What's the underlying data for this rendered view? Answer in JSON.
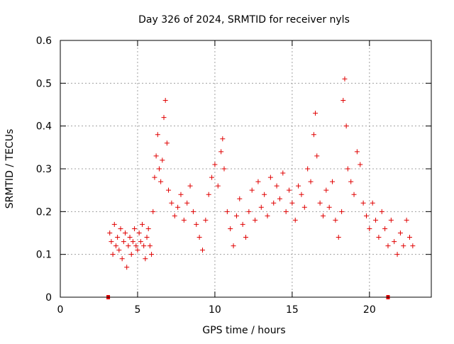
{
  "chart_data": {
    "type": "scatter",
    "title": "Day 326 of 2024, SRMTID for receiver nyls",
    "xlabel": "GPS time / hours",
    "ylabel": "SRMTID / TECUs",
    "xlim": [
      0,
      24
    ],
    "ylim": [
      0,
      0.6
    ],
    "x_ticks": [
      0,
      5,
      10,
      15,
      20
    ],
    "x_tick_labels": [
      "0",
      "5",
      "10",
      "15",
      "20"
    ],
    "y_ticks": [
      0,
      0.1,
      0.2,
      0.3,
      0.4,
      0.5,
      0.6
    ],
    "y_tick_labels": [
      "0",
      "0.1",
      "0.2",
      "0.3",
      "0.4",
      "0.5",
      "0.6"
    ],
    "grid": true,
    "marker": "+",
    "series_color": "#e00000",
    "axis_markers": [
      {
        "x": 3.1,
        "y": 0
      },
      {
        "x": 21.2,
        "y": 0
      }
    ],
    "series": [
      {
        "name": "SRMTID",
        "points": [
          [
            3.2,
            0.15
          ],
          [
            3.3,
            0.13
          ],
          [
            3.4,
            0.1
          ],
          [
            3.5,
            0.17
          ],
          [
            3.6,
            0.12
          ],
          [
            3.7,
            0.14
          ],
          [
            3.8,
            0.11
          ],
          [
            3.9,
            0.16
          ],
          [
            4.0,
            0.09
          ],
          [
            4.1,
            0.13
          ],
          [
            4.2,
            0.15
          ],
          [
            4.3,
            0.07
          ],
          [
            4.4,
            0.12
          ],
          [
            4.5,
            0.14
          ],
          [
            4.6,
            0.1
          ],
          [
            4.7,
            0.13
          ],
          [
            4.8,
            0.16
          ],
          [
            4.9,
            0.12
          ],
          [
            5.0,
            0.11
          ],
          [
            5.1,
            0.15
          ],
          [
            5.2,
            0.13
          ],
          [
            5.3,
            0.17
          ],
          [
            5.4,
            0.12
          ],
          [
            5.5,
            0.09
          ],
          [
            5.6,
            0.14
          ],
          [
            5.7,
            0.16
          ],
          [
            5.8,
            0.12
          ],
          [
            5.9,
            0.1
          ],
          [
            6.0,
            0.2
          ],
          [
            6.1,
            0.28
          ],
          [
            6.2,
            0.33
          ],
          [
            6.3,
            0.38
          ],
          [
            6.4,
            0.3
          ],
          [
            6.5,
            0.27
          ],
          [
            6.6,
            0.32
          ],
          [
            6.7,
            0.42
          ],
          [
            6.8,
            0.46
          ],
          [
            6.9,
            0.36
          ],
          [
            7.0,
            0.25
          ],
          [
            7.2,
            0.22
          ],
          [
            7.4,
            0.19
          ],
          [
            7.6,
            0.21
          ],
          [
            7.8,
            0.24
          ],
          [
            8.0,
            0.18
          ],
          [
            8.2,
            0.22
          ],
          [
            8.4,
            0.26
          ],
          [
            8.6,
            0.2
          ],
          [
            8.8,
            0.17
          ],
          [
            9.0,
            0.14
          ],
          [
            9.2,
            0.11
          ],
          [
            9.4,
            0.18
          ],
          [
            9.6,
            0.24
          ],
          [
            9.8,
            0.28
          ],
          [
            10.0,
            0.31
          ],
          [
            10.2,
            0.26
          ],
          [
            10.4,
            0.34
          ],
          [
            10.5,
            0.37
          ],
          [
            10.6,
            0.3
          ],
          [
            10.8,
            0.2
          ],
          [
            11.0,
            0.16
          ],
          [
            11.2,
            0.12
          ],
          [
            11.4,
            0.19
          ],
          [
            11.6,
            0.23
          ],
          [
            11.8,
            0.17
          ],
          [
            12.0,
            0.14
          ],
          [
            12.2,
            0.2
          ],
          [
            12.4,
            0.25
          ],
          [
            12.6,
            0.18
          ],
          [
            12.8,
            0.27
          ],
          [
            13.0,
            0.21
          ],
          [
            13.2,
            0.24
          ],
          [
            13.4,
            0.19
          ],
          [
            13.6,
            0.28
          ],
          [
            13.8,
            0.22
          ],
          [
            14.0,
            0.26
          ],
          [
            14.2,
            0.23
          ],
          [
            14.4,
            0.29
          ],
          [
            14.6,
            0.2
          ],
          [
            14.8,
            0.25
          ],
          [
            15.0,
            0.22
          ],
          [
            15.2,
            0.18
          ],
          [
            15.4,
            0.26
          ],
          [
            15.6,
            0.24
          ],
          [
            15.8,
            0.21
          ],
          [
            16.0,
            0.3
          ],
          [
            16.2,
            0.27
          ],
          [
            16.4,
            0.38
          ],
          [
            16.5,
            0.43
          ],
          [
            16.6,
            0.33
          ],
          [
            16.8,
            0.22
          ],
          [
            17.0,
            0.19
          ],
          [
            17.2,
            0.25
          ],
          [
            17.4,
            0.21
          ],
          [
            17.6,
            0.27
          ],
          [
            17.8,
            0.18
          ],
          [
            18.0,
            0.14
          ],
          [
            18.2,
            0.2
          ],
          [
            18.3,
            0.46
          ],
          [
            18.4,
            0.51
          ],
          [
            18.5,
            0.4
          ],
          [
            18.6,
            0.3
          ],
          [
            18.8,
            0.27
          ],
          [
            19.0,
            0.24
          ],
          [
            19.2,
            0.34
          ],
          [
            19.4,
            0.31
          ],
          [
            19.6,
            0.22
          ],
          [
            19.8,
            0.19
          ],
          [
            20.0,
            0.16
          ],
          [
            20.2,
            0.22
          ],
          [
            20.4,
            0.18
          ],
          [
            20.6,
            0.14
          ],
          [
            20.8,
            0.2
          ],
          [
            21.0,
            0.16
          ],
          [
            21.2,
            0.12
          ],
          [
            21.4,
            0.18
          ],
          [
            21.6,
            0.13
          ],
          [
            21.8,
            0.1
          ],
          [
            22.0,
            0.15
          ],
          [
            22.2,
            0.12
          ],
          [
            22.4,
            0.18
          ],
          [
            22.6,
            0.14
          ],
          [
            22.8,
            0.12
          ]
        ]
      }
    ]
  }
}
